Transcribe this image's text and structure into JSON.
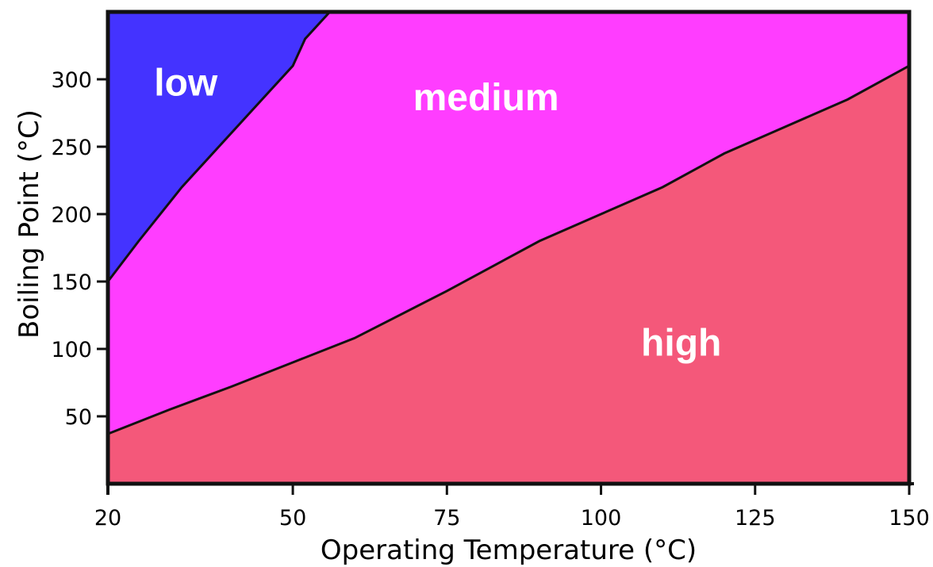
{
  "chart_data": {
    "type": "area",
    "xlabel": "Operating Temperature (°C)",
    "ylabel": "Boiling Point (°C)",
    "xlim": [
      20,
      150
    ],
    "ylim": [
      0,
      350
    ],
    "x_ticks": [
      20,
      50,
      75,
      100,
      125,
      150
    ],
    "y_ticks": [
      50,
      100,
      150,
      200,
      250,
      300
    ],
    "grid": false,
    "regions": [
      {
        "label": "low",
        "color": "#4433ff"
      },
      {
        "label": "medium",
        "color": "#ff3dff"
      },
      {
        "label": "high",
        "color": "#f4587a"
      }
    ],
    "boundaries": [
      {
        "between": [
          "low",
          "medium"
        ],
        "points": [
          [
            20,
            150
          ],
          [
            25,
            180
          ],
          [
            32,
            220
          ],
          [
            38,
            250
          ],
          [
            45,
            285
          ],
          [
            50,
            310
          ],
          [
            52,
            330
          ],
          [
            56,
            350
          ]
        ]
      },
      {
        "between": [
          "medium",
          "high"
        ],
        "points": [
          [
            20,
            37
          ],
          [
            30,
            55
          ],
          [
            40,
            72
          ],
          [
            50,
            90
          ],
          [
            60,
            108
          ],
          [
            75,
            143
          ],
          [
            90,
            180
          ],
          [
            100,
            200
          ],
          [
            110,
            220
          ],
          [
            120,
            245
          ],
          [
            130,
            265
          ],
          [
            140,
            285
          ],
          [
            150,
            310
          ]
        ]
      }
    ]
  }
}
